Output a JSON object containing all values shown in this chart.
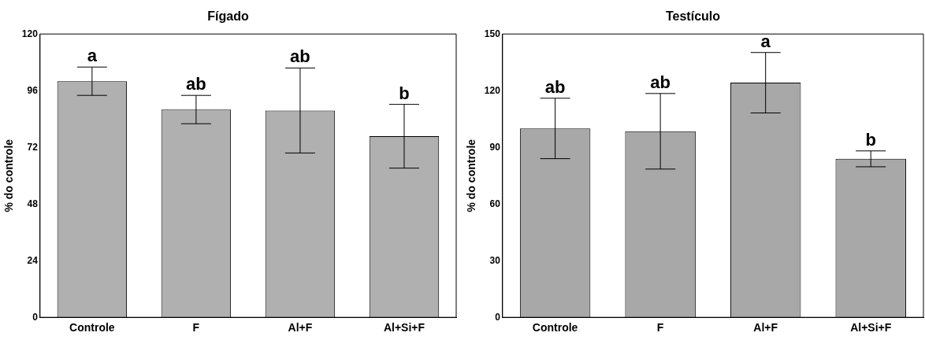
{
  "chart_data": [
    {
      "type": "bar",
      "title": "Fígado",
      "ylabel": "% do controle",
      "categories": [
        "Controle",
        "F",
        "Al+F",
        "Al+Si+F"
      ],
      "values": [
        100,
        88,
        87.6,
        76.7
      ],
      "errors": [
        6,
        6,
        18,
        13.5
      ],
      "color": "#b0b0b0",
      "ylim": [
        0,
        120
      ],
      "yticks": [
        0,
        24,
        48,
        72,
        96,
        120
      ],
      "grid": false,
      "annotations": [
        {
          "text": "a",
          "x": "Controle",
          "y": 106
        },
        {
          "text": "ab",
          "x": "F",
          "y": 94
        },
        {
          "text": "ab",
          "x": "Al+F",
          "y": 105.6
        },
        {
          "text": "b",
          "x": "Al+Si+F",
          "y": 90.2
        }
      ]
    },
    {
      "type": "bar",
      "title": "Testículo",
      "ylabel": "% do controle",
      "categories": [
        "Controle",
        "F",
        "Al+F",
        "Al+Si+F"
      ],
      "values": [
        100,
        98.5,
        124.2,
        83.9
      ],
      "errors": [
        16,
        20,
        16,
        4.2
      ],
      "color": "#a8a8a8",
      "ylim": [
        0,
        150
      ],
      "yticks": [
        0,
        30,
        60,
        90,
        120,
        150
      ],
      "grid": false,
      "annotations": [
        {
          "text": "ab",
          "x": "Controle",
          "y": 116
        },
        {
          "text": "ab",
          "x": "F",
          "y": 118.5
        },
        {
          "text": "a",
          "x": "Al+F",
          "y": 140.2
        },
        {
          "text": "b",
          "x": "Al+Si+F",
          "y": 88.1
        }
      ]
    }
  ]
}
